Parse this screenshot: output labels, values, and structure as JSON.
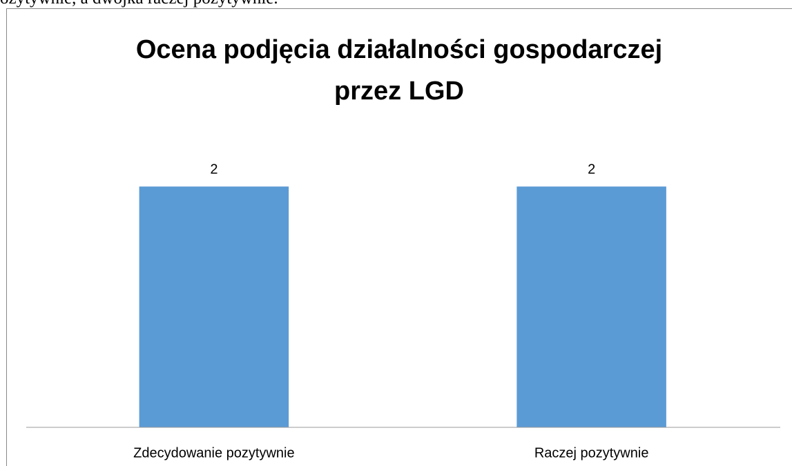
{
  "document_text": "ozytywnie, a dwójka raczej pozytywnie.",
  "chart_data": {
    "type": "bar",
    "title": "Ocena podjęcia działalności gospodarczej przez LGD",
    "categories": [
      "Zdecydowanie pozytywnie",
      "Raczej pozytywnie"
    ],
    "values": [
      2,
      2
    ],
    "color": "#5b9bd5",
    "ylim": [
      0,
      2.5
    ],
    "grid": false,
    "data_labels": true
  }
}
